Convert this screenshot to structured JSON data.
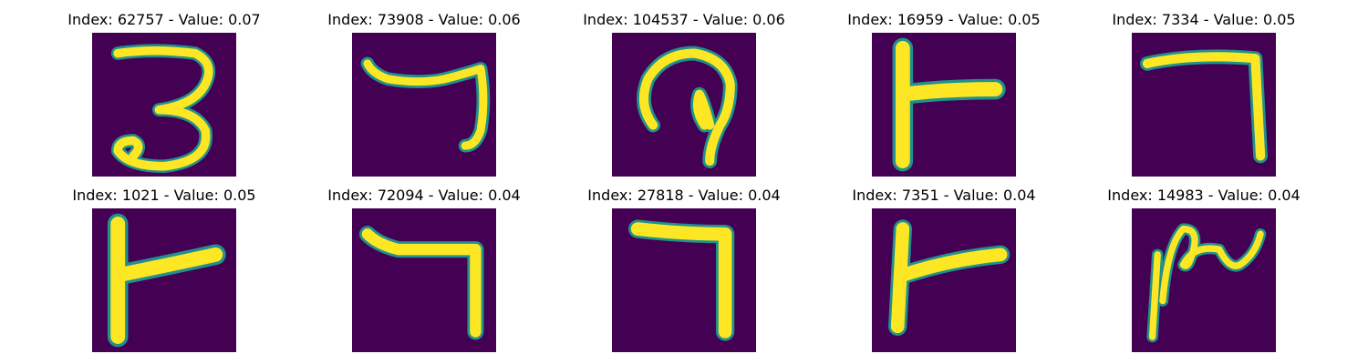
{
  "colors": {
    "background": "#440154",
    "mid": "#21918c",
    "low": "#31688e",
    "high": "#fde725",
    "light": "#b5de2b"
  },
  "panels": [
    {
      "title": "Index: 62757 - Value: 0.07",
      "glyph": "digit-three-stroke"
    },
    {
      "title": "Index: 73908 - Value: 0.06",
      "glyph": "hook-stroke"
    },
    {
      "title": "Index: 104537 - Value: 0.06",
      "glyph": "loop-stroke"
    },
    {
      "title": "Index: 16959 - Value: 0.05",
      "glyph": "t-stroke"
    },
    {
      "title": "Index: 7334 - Value: 0.05",
      "glyph": "seven-stroke"
    },
    {
      "title": "Index: 1021 - Value: 0.05",
      "glyph": "t-stroke"
    },
    {
      "title": "Index: 72094 - Value: 0.04",
      "glyph": "hook-stroke"
    },
    {
      "title": "Index: 27818 - Value: 0.04",
      "glyph": "seven-stroke"
    },
    {
      "title": "Index: 7351 - Value: 0.04",
      "glyph": "t-stroke"
    },
    {
      "title": "Index: 14983 - Value: 0.04",
      "glyph": "wave-stroke"
    }
  ]
}
